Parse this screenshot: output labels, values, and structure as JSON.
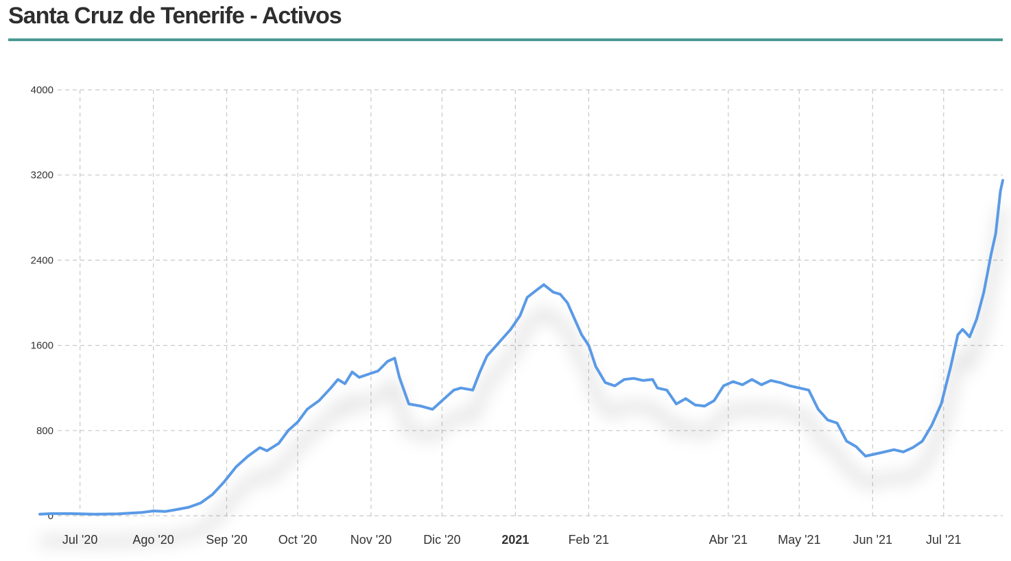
{
  "title": "Santa Cruz de Tenerife - Activos",
  "colors": {
    "line": "#5a9ae6",
    "grid": "#c8c8c8",
    "title_rule": "#4a9a92"
  },
  "chart_data": {
    "type": "line",
    "title": "Santa Cruz de Tenerife - Activos",
    "xlabel": "",
    "ylabel": "",
    "ylim": [
      0,
      4000
    ],
    "y_ticks": [
      0,
      800,
      1600,
      2400,
      3200,
      4000
    ],
    "x_ticks": [
      {
        "label": "Jul '20",
        "day": 4,
        "bold": false
      },
      {
        "label": "Ago '20",
        "day": 35,
        "bold": false
      },
      {
        "label": "Sep '20",
        "day": 66,
        "bold": false
      },
      {
        "label": "Oct '20",
        "day": 96,
        "bold": false
      },
      {
        "label": "Nov '20",
        "day": 127,
        "bold": false
      },
      {
        "label": "Dic '20",
        "day": 157,
        "bold": false
      },
      {
        "label": "2021",
        "day": 188,
        "bold": true
      },
      {
        "label": "Feb '21",
        "day": 219,
        "bold": false
      },
      {
        "label": "Abr '21",
        "day": 278,
        "bold": false
      },
      {
        "label": "May '21",
        "day": 308,
        "bold": false
      },
      {
        "label": "Jun '21",
        "day": 339,
        "bold": false
      },
      {
        "label": "Jul '21",
        "day": 369,
        "bold": false
      }
    ],
    "x_domain": [
      -13,
      394
    ],
    "series": [
      {
        "name": "Activos",
        "points": [
          [
            -13,
            15
          ],
          [
            -8,
            20
          ],
          [
            0,
            20
          ],
          [
            10,
            15
          ],
          [
            20,
            18
          ],
          [
            30,
            30
          ],
          [
            35,
            45
          ],
          [
            40,
            40
          ],
          [
            44,
            55
          ],
          [
            50,
            80
          ],
          [
            55,
            120
          ],
          [
            60,
            200
          ],
          [
            65,
            320
          ],
          [
            70,
            460
          ],
          [
            75,
            560
          ],
          [
            80,
            640
          ],
          [
            83,
            610
          ],
          [
            88,
            680
          ],
          [
            92,
            800
          ],
          [
            96,
            880
          ],
          [
            100,
            1000
          ],
          [
            105,
            1080
          ],
          [
            110,
            1200
          ],
          [
            113,
            1280
          ],
          [
            116,
            1240
          ],
          [
            119,
            1350
          ],
          [
            122,
            1300
          ],
          [
            126,
            1330
          ],
          [
            130,
            1360
          ],
          [
            134,
            1450
          ],
          [
            137,
            1480
          ],
          [
            139,
            1300
          ],
          [
            143,
            1050
          ],
          [
            148,
            1030
          ],
          [
            153,
            1000
          ],
          [
            157,
            1080
          ],
          [
            162,
            1180
          ],
          [
            165,
            1200
          ],
          [
            170,
            1180
          ],
          [
            173,
            1350
          ],
          [
            176,
            1500
          ],
          [
            180,
            1600
          ],
          [
            184,
            1700
          ],
          [
            186,
            1750
          ],
          [
            190,
            1880
          ],
          [
            193,
            2050
          ],
          [
            197,
            2120
          ],
          [
            200,
            2170
          ],
          [
            204,
            2100
          ],
          [
            207,
            2080
          ],
          [
            210,
            2000
          ],
          [
            213,
            1850
          ],
          [
            216,
            1700
          ],
          [
            219,
            1600
          ],
          [
            222,
            1400
          ],
          [
            226,
            1250
          ],
          [
            230,
            1220
          ],
          [
            234,
            1280
          ],
          [
            238,
            1290
          ],
          [
            242,
            1270
          ],
          [
            246,
            1280
          ],
          [
            248,
            1200
          ],
          [
            252,
            1180
          ],
          [
            256,
            1050
          ],
          [
            260,
            1100
          ],
          [
            264,
            1040
          ],
          [
            268,
            1030
          ],
          [
            272,
            1080
          ],
          [
            276,
            1220
          ],
          [
            280,
            1260
          ],
          [
            284,
            1230
          ],
          [
            288,
            1280
          ],
          [
            292,
            1230
          ],
          [
            296,
            1270
          ],
          [
            300,
            1250
          ],
          [
            304,
            1220
          ],
          [
            308,
            1200
          ],
          [
            312,
            1180
          ],
          [
            316,
            1000
          ],
          [
            320,
            900
          ],
          [
            324,
            870
          ],
          [
            328,
            700
          ],
          [
            332,
            650
          ],
          [
            336,
            560
          ],
          [
            340,
            580
          ],
          [
            344,
            600
          ],
          [
            348,
            620
          ],
          [
            352,
            600
          ],
          [
            356,
            640
          ],
          [
            360,
            700
          ],
          [
            364,
            850
          ],
          [
            368,
            1050
          ],
          [
            372,
            1400
          ],
          [
            375,
            1700
          ],
          [
            377,
            1750
          ],
          [
            380,
            1680
          ],
          [
            383,
            1850
          ],
          [
            386,
            2100
          ],
          [
            389,
            2450
          ],
          [
            391,
            2650
          ],
          [
            393,
            3050
          ],
          [
            394,
            3150
          ]
        ]
      }
    ]
  }
}
